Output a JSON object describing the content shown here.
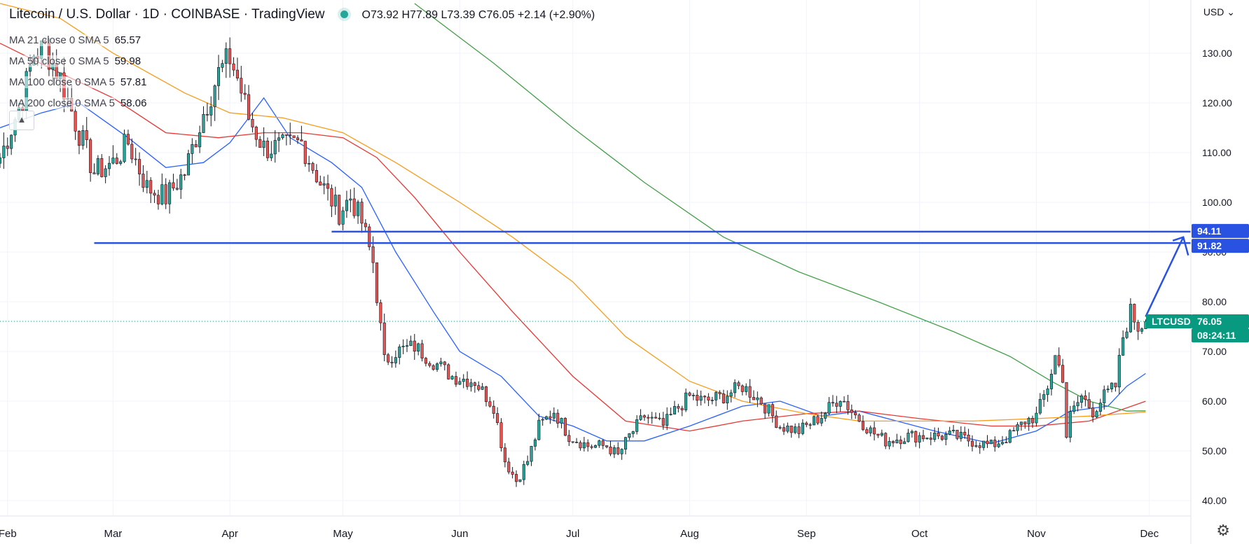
{
  "header": {
    "title": "Litecoin / U.S. Dollar · 1D · COINBASE · TradingView",
    "ohlc": "O73.92 H77.89 L73.39 C76.05 +2.14 (+2.90%)"
  },
  "indicators": [
    {
      "name": "MA 21 close 0 SMA 5",
      "value": "65.57",
      "color": "#2962ff"
    },
    {
      "name": "MA 50 close 0 SMA 5",
      "value": "59.98",
      "color": "#e53935"
    },
    {
      "name": "MA 100 close 0 SMA 5",
      "value": "57.81",
      "color": "#f89c1c"
    },
    {
      "name": "MA 200 close 0 SMA 5",
      "value": "58.06",
      "color": "#43a047"
    }
  ],
  "axis": {
    "currency": "USD"
  },
  "labels": {
    "level1": "94.11",
    "level2": "91.82",
    "symbol": "LTCUSD",
    "price": "76.05",
    "countdown": "08:24:11"
  },
  "colors": {
    "up": "#26a69a",
    "down": "#ef5350",
    "level": "#2952e3",
    "price_tag": "#089981"
  },
  "icons": {
    "settings": "gear-icon",
    "collapse": "chevron-up-icon"
  },
  "chart_data": {
    "type": "candlestick",
    "title": "Litecoin / U.S. Dollar · 1D · COINBASE · TradingView",
    "y_ticks": [
      40,
      50,
      60,
      70,
      80,
      90,
      100,
      110,
      120,
      130
    ],
    "ylim": [
      37,
      137
    ],
    "x_months": [
      "Feb",
      "Mar",
      "Apr",
      "May",
      "Jun",
      "Jul",
      "Aug",
      "Sep",
      "Oct",
      "Nov",
      "Dec"
    ],
    "x_start": "2022-01-30",
    "x_end": "2022-12-12",
    "horizontal_levels": [
      94.11,
      91.82
    ],
    "last_price": 76.05,
    "projection_arrow": {
      "from": [
        "2022-11-30",
        77
      ],
      "to": [
        "2022-12-10",
        93
      ]
    },
    "close_anchors": [
      [
        "2022-01-30",
        109
      ],
      [
        "2022-02-05",
        121
      ],
      [
        "2022-02-08",
        130
      ],
      [
        "2022-02-11",
        131
      ],
      [
        "2022-02-15",
        125
      ],
      [
        "2022-02-20",
        114
      ],
      [
        "2022-02-24",
        106
      ],
      [
        "2022-03-01",
        108
      ],
      [
        "2022-03-05",
        112
      ],
      [
        "2022-03-10",
        103
      ],
      [
        "2022-03-15",
        101
      ],
      [
        "2022-03-20",
        106
      ],
      [
        "2022-03-25",
        118
      ],
      [
        "2022-03-29",
        126
      ],
      [
        "2022-04-01",
        129
      ],
      [
        "2022-04-03",
        125
      ],
      [
        "2022-04-06",
        117
      ],
      [
        "2022-04-10",
        111
      ],
      [
        "2022-04-15",
        111
      ],
      [
        "2022-04-20",
        112
      ],
      [
        "2022-04-25",
        104
      ],
      [
        "2022-04-30",
        98
      ],
      [
        "2022-05-03",
        101
      ],
      [
        "2022-05-06",
        96
      ],
      [
        "2022-05-09",
        88
      ],
      [
        "2022-05-12",
        68
      ],
      [
        "2022-05-15",
        70
      ],
      [
        "2022-05-20",
        71
      ],
      [
        "2022-05-25",
        68
      ],
      [
        "2022-05-30",
        65
      ],
      [
        "2022-06-05",
        64
      ],
      [
        "2022-06-10",
        59
      ],
      [
        "2022-06-13",
        48
      ],
      [
        "2022-06-16",
        44
      ],
      [
        "2022-06-19",
        48
      ],
      [
        "2022-06-22",
        55
      ],
      [
        "2022-06-26",
        58
      ],
      [
        "2022-06-30",
        53
      ],
      [
        "2022-07-05",
        51
      ],
      [
        "2022-07-10",
        51
      ],
      [
        "2022-07-13",
        49
      ],
      [
        "2022-07-16",
        53
      ],
      [
        "2022-07-20",
        57
      ],
      [
        "2022-07-25",
        55
      ],
      [
        "2022-07-28",
        58
      ],
      [
        "2022-08-01",
        61
      ],
      [
        "2022-08-05",
        60
      ],
      [
        "2022-08-10",
        61
      ],
      [
        "2022-08-15",
        63
      ],
      [
        "2022-08-20",
        60
      ],
      [
        "2022-08-25",
        55
      ],
      [
        "2022-08-30",
        54
      ],
      [
        "2022-09-05",
        57
      ],
      [
        "2022-09-10",
        61
      ],
      [
        "2022-09-13",
        58
      ],
      [
        "2022-09-18",
        54
      ],
      [
        "2022-09-22",
        52
      ],
      [
        "2022-09-28",
        53
      ],
      [
        "2022-10-03",
        53
      ],
      [
        "2022-10-10",
        53
      ],
      [
        "2022-10-15",
        52
      ],
      [
        "2022-10-20",
        51
      ],
      [
        "2022-10-25",
        53
      ],
      [
        "2022-10-29",
        56
      ],
      [
        "2022-11-01",
        57
      ],
      [
        "2022-11-04",
        63
      ],
      [
        "2022-11-06",
        69
      ],
      [
        "2022-11-08",
        65
      ],
      [
        "2022-11-09",
        53
      ],
      [
        "2022-11-10",
        57
      ],
      [
        "2022-11-13",
        61
      ],
      [
        "2022-11-16",
        58
      ],
      [
        "2022-11-19",
        61
      ],
      [
        "2022-11-22",
        63
      ],
      [
        "2022-11-24",
        73
      ],
      [
        "2022-11-26",
        78
      ],
      [
        "2022-11-28",
        75
      ],
      [
        "2022-11-30",
        76.05
      ]
    ],
    "ma_series": [
      {
        "name": "MA 21",
        "color": "#2962ff",
        "points": [
          [
            "2022-01-30",
            115
          ],
          [
            "2022-02-10",
            118
          ],
          [
            "2022-02-20",
            120
          ],
          [
            "2022-03-05",
            113
          ],
          [
            "2022-03-15",
            107
          ],
          [
            "2022-03-25",
            108
          ],
          [
            "2022-04-01",
            112
          ],
          [
            "2022-04-10",
            121
          ],
          [
            "2022-04-17",
            113
          ],
          [
            "2022-04-28",
            108
          ],
          [
            "2022-05-06",
            103
          ],
          [
            "2022-05-15",
            90
          ],
          [
            "2022-05-25",
            78
          ],
          [
            "2022-06-01",
            70
          ],
          [
            "2022-06-12",
            65
          ],
          [
            "2022-06-22",
            57
          ],
          [
            "2022-07-01",
            55
          ],
          [
            "2022-07-10",
            52
          ],
          [
            "2022-07-20",
            52
          ],
          [
            "2022-08-01",
            55
          ],
          [
            "2022-08-15",
            59
          ],
          [
            "2022-08-25",
            60
          ],
          [
            "2022-09-05",
            57
          ],
          [
            "2022-09-15",
            58
          ],
          [
            "2022-09-25",
            56
          ],
          [
            "2022-10-05",
            54
          ],
          [
            "2022-10-20",
            51.5
          ],
          [
            "2022-11-01",
            54
          ],
          [
            "2022-11-10",
            58
          ],
          [
            "2022-11-20",
            59
          ],
          [
            "2022-11-25",
            63
          ],
          [
            "2022-11-30",
            65.57
          ]
        ]
      },
      {
        "name": "MA 50",
        "color": "#e53935",
        "points": [
          [
            "2022-01-30",
            132
          ],
          [
            "2022-02-15",
            126
          ],
          [
            "2022-03-01",
            121
          ],
          [
            "2022-03-15",
            114
          ],
          [
            "2022-03-29",
            113
          ],
          [
            "2022-04-10",
            114
          ],
          [
            "2022-04-20",
            114
          ],
          [
            "2022-05-01",
            113
          ],
          [
            "2022-05-10",
            109
          ],
          [
            "2022-05-20",
            101
          ],
          [
            "2022-06-01",
            90
          ],
          [
            "2022-06-15",
            78
          ],
          [
            "2022-07-01",
            65
          ],
          [
            "2022-07-15",
            56
          ],
          [
            "2022-08-01",
            54
          ],
          [
            "2022-08-15",
            56
          ],
          [
            "2022-09-01",
            57.5
          ],
          [
            "2022-09-15",
            58
          ],
          [
            "2022-10-01",
            56.5
          ],
          [
            "2022-10-20",
            55
          ],
          [
            "2022-11-01",
            55
          ],
          [
            "2022-11-15",
            56
          ],
          [
            "2022-11-30",
            59.98
          ]
        ]
      },
      {
        "name": "MA 100",
        "color": "#f89c1c",
        "points": [
          [
            "2022-01-30",
            140
          ],
          [
            "2022-02-15",
            137
          ],
          [
            "2022-03-01",
            130
          ],
          [
            "2022-03-20",
            122
          ],
          [
            "2022-04-01",
            118
          ],
          [
            "2022-04-15",
            117
          ],
          [
            "2022-05-01",
            114
          ],
          [
            "2022-05-15",
            108
          ],
          [
            "2022-06-01",
            100
          ],
          [
            "2022-06-15",
            93
          ],
          [
            "2022-07-01",
            84
          ],
          [
            "2022-07-15",
            73
          ],
          [
            "2022-08-01",
            64
          ],
          [
            "2022-08-15",
            60
          ],
          [
            "2022-09-01",
            57.5
          ],
          [
            "2022-09-15",
            56
          ],
          [
            "2022-10-01",
            56
          ],
          [
            "2022-10-15",
            56
          ],
          [
            "2022-11-01",
            56.5
          ],
          [
            "2022-11-15",
            57
          ],
          [
            "2022-11-30",
            57.81
          ]
        ]
      },
      {
        "name": "MA 200",
        "color": "#43a047",
        "points": [
          [
            "2022-05-20",
            140
          ],
          [
            "2022-06-10",
            128
          ],
          [
            "2022-07-01",
            115
          ],
          [
            "2022-07-20",
            104
          ],
          [
            "2022-08-10",
            93
          ],
          [
            "2022-08-30",
            86
          ],
          [
            "2022-09-20",
            80
          ],
          [
            "2022-10-10",
            74
          ],
          [
            "2022-10-25",
            69
          ],
          [
            "2022-11-05",
            64
          ],
          [
            "2022-11-15",
            60
          ],
          [
            "2022-11-25",
            58
          ],
          [
            "2022-11-30",
            58.06
          ]
        ]
      }
    ]
  }
}
